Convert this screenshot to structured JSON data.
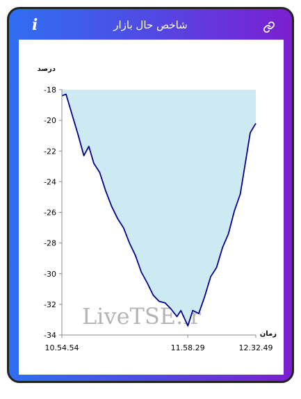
{
  "header": {
    "title": "شاخص حال بازار",
    "info_icon": "info-icon",
    "link_icon": "link-icon"
  },
  "colors": {
    "gradient_start": "#2f6ff1",
    "gradient_end": "#7b1fd0",
    "line": "#00008b",
    "area": "#cde9f2"
  },
  "chart_data": {
    "type": "area",
    "ylabel": "درصد",
    "xlabel": "زمان",
    "ylim": [
      -34,
      -18
    ],
    "yticks": [
      "-18",
      "-20",
      "-22",
      "-24",
      "-26",
      "-28",
      "-30",
      "-32",
      "-34"
    ],
    "xtick_labels": [
      "10.54.54",
      "11.58.29",
      "12.32.49"
    ],
    "x_time": [
      "10.54.54",
      "10.57.00",
      "11.00.00",
      "11.03.00",
      "11.06.00",
      "11.08.30",
      "11.11.00",
      "11.14.00",
      "11.17.00",
      "11.20.00",
      "11.23.00",
      "11.26.00",
      "11.29.00",
      "11.32.00",
      "11.35.00",
      "11.38.00",
      "11.41.00",
      "11.44.00",
      "11.47.00",
      "11.50.00",
      "11.53.00",
      "11.55.00",
      "11.58.29",
      "12.01.00",
      "12.04.00",
      "12.07.00",
      "12.10.00",
      "12.13.00",
      "12.16.00",
      "12.19.00",
      "12.22.00",
      "12.25.00",
      "12.28.00",
      "12.30.00",
      "12.32.49"
    ],
    "values": [
      -18.4,
      -18.3,
      -19.6,
      -20.9,
      -22.3,
      -21.7,
      -22.8,
      -23.4,
      -24.6,
      -25.6,
      -26.4,
      -27.0,
      -28.0,
      -28.8,
      -29.9,
      -30.6,
      -31.4,
      -31.8,
      -31.9,
      -32.3,
      -32.8,
      -32.4,
      -33.4,
      -32.4,
      -32.6,
      -31.5,
      -30.2,
      -29.6,
      -28.3,
      -27.4,
      -25.9,
      -24.8,
      -22.4,
      -20.8,
      -20.2
    ],
    "watermark": "LiveTSE.ir",
    "grid": false,
    "legend": "none"
  }
}
